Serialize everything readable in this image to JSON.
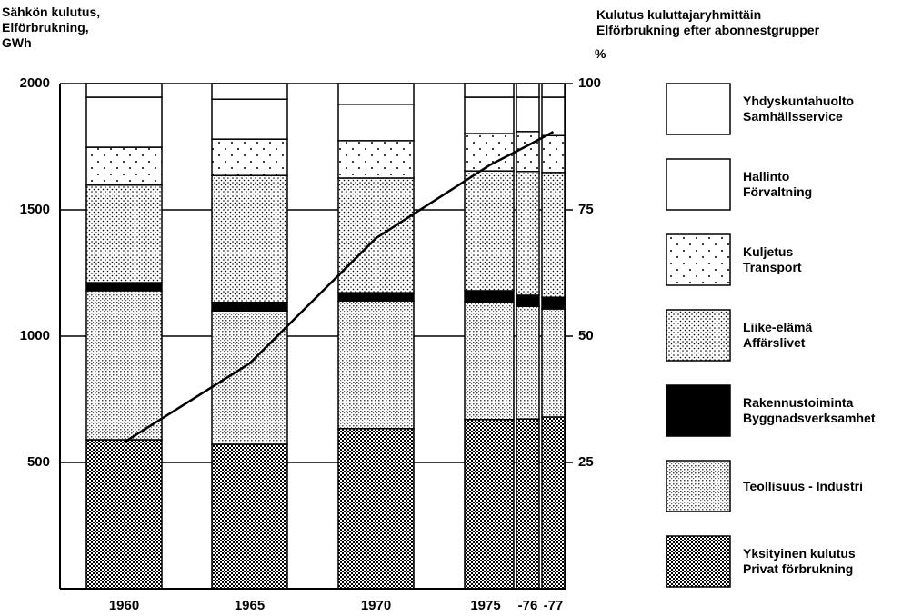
{
  "chart_data": {
    "type": "bar",
    "stacked": true,
    "y_title": "Sähkön kulutus,\nElförbrukning,\nGWh",
    "y2_title": "Kulutus kuluttajaryhmittäin\nElförbrukning efter abonnestgrupper",
    "y2_unit": "%",
    "categories": [
      "1960",
      "1965",
      "1970",
      "1975",
      "-76",
      "-77"
    ],
    "ylim": [
      0,
      2000
    ],
    "yticks": [
      500,
      1000,
      1500,
      2000
    ],
    "y2lim": [
      0,
      100
    ],
    "y2ticks": [
      25,
      50,
      75,
      100
    ],
    "grid": true,
    "legend": "right",
    "series": [
      {
        "name": "Yksityinen kulutus\nPrivat förbrukning",
        "color": "#000000",
        "pattern": "dense",
        "axis": "y2",
        "values": [
          29.5,
          28.6,
          31.7,
          33.5,
          33.6,
          34.0
        ]
      },
      {
        "name": "Teollisuus - Industri",
        "color": "#000000",
        "pattern": "medium",
        "axis": "y2",
        "values": [
          29.5,
          26.4,
          25.3,
          23.2,
          22.3,
          21.4
        ]
      },
      {
        "name": "Rakennustoiminta\nByggnadsverksamhet",
        "color": "#000000",
        "pattern": "solid",
        "axis": "y2",
        "values": [
          1.6,
          1.7,
          1.6,
          2.3,
          2.2,
          2.3
        ]
      },
      {
        "name": "Liike-elämä\nAffärslivet",
        "color": "#000000",
        "pattern": "fine",
        "axis": "y2",
        "values": [
          19.3,
          25.1,
          22.7,
          23.7,
          24.5,
          24.7
        ]
      },
      {
        "name": "Kuljetus\nTransport",
        "color": "#000000",
        "pattern": "sparse",
        "axis": "y2",
        "values": [
          7.5,
          7.2,
          7.4,
          7.4,
          7.9,
          7.3
        ]
      },
      {
        "name": "Hallinto\nFörvaltning",
        "color": "#000000",
        "pattern": "none",
        "axis": "y2",
        "values": [
          9.9,
          7.9,
          7.2,
          7.2,
          6.8,
          7.6
        ]
      },
      {
        "name": "Yhdyskuntahuolto\nSamhällsservice",
        "color": "#000000",
        "pattern": "none",
        "axis": "y2",
        "values": [
          2.7,
          3.1,
          4.1,
          2.7,
          2.7,
          2.7
        ]
      }
    ],
    "line": {
      "color": "#000000",
      "values": [
        580,
        892,
        1388,
        1676,
        1755,
        1809
      ]
    }
  }
}
